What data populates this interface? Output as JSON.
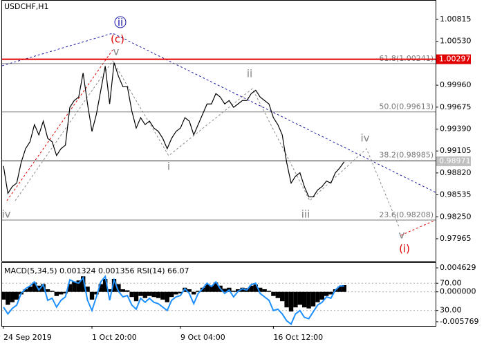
{
  "chart_data": [
    {
      "type": "line",
      "title": "USDCHF,H1",
      "color": "#000000",
      "values": [
        0.98911,
        0.98554,
        0.98643,
        0.98688,
        0.98956,
        0.99135,
        0.99225,
        0.99448,
        0.99314,
        0.99493,
        0.99269,
        0.99225,
        0.99046,
        0.99135,
        0.9918,
        0.99672,
        0.99761,
        0.99806,
        1.00119,
        0.99716,
        0.99359,
        0.99582,
        0.99895,
        1.00208,
        0.99716,
        1.00253,
        1.00074,
        0.9994,
        0.9994,
        0.99627,
        0.99403,
        0.99538,
        0.99448,
        0.99493,
        0.99403,
        0.99359,
        0.99269,
        0.99135,
        0.99269,
        0.99359,
        0.99403,
        0.99538,
        0.99493,
        0.99314,
        0.99448,
        0.99582,
        0.99716,
        0.99716,
        0.99851,
        0.99806,
        0.99716,
        0.99761,
        0.99672,
        0.99716,
        0.99761,
        0.99761,
        0.99851,
        0.99895,
        0.99806,
        0.99761,
        0.99716,
        0.99538,
        0.99448,
        0.99314,
        0.98956,
        0.98688,
        0.98777,
        0.98822,
        0.98643,
        0.98509,
        0.98509,
        0.98598,
        0.98643,
        0.98715,
        0.98688,
        0.98822,
        0.98885,
        0.98965
      ],
      "ylim": [
        0.97677,
        1.01058
      ],
      "yticks": [
        1.00815,
        {
          "value": 1.0053,
          "label": "1.00530"
        },
        {
          "value": 0.9996,
          "label": "0.99960"
        },
        0.99675,
        {
          "value": 0.9939,
          "label": "0.99390"
        },
        0.99105,
        {
          "value": 0.9882,
          "label": "0.98820"
        },
        0.98535,
        {
          "value": 0.9825,
          "label": "0.98250"
        },
        0.97965
      ],
      "fib_levels": [
        {
          "value": 1.00241,
          "label": "61.8(1.00241)"
        },
        {
          "value": 0.99613,
          "label": "50.0(0.99613)"
        },
        {
          "value": 0.98985,
          "label": "38.2(0.98985)"
        },
        {
          "value": 0.98208,
          "label": "23.6(0.98208)"
        }
      ],
      "level": {
        "value": 1.00297,
        "color": "#e00000"
      },
      "current_price": 0.98971,
      "annotations": [
        {
          "text": "ii",
          "color": "#1a1aa6"
        },
        {
          "text": "(c)",
          "color": "#e00000"
        },
        {
          "text": "v",
          "color": "#808080"
        },
        {
          "text": "ii",
          "color": "#808080"
        },
        {
          "text": "iv",
          "color": "#808080"
        },
        {
          "text": "i",
          "color": "#808080"
        },
        {
          "text": "iv",
          "color": "#808080"
        },
        {
          "text": "iii",
          "color": "#808080"
        },
        {
          "text": "v",
          "color": "#808080"
        },
        {
          "text": "(i)",
          "color": "#e00000"
        }
      ]
    },
    {
      "type": "bar",
      "macd_label": "MACD(5,34,5)",
      "macd_value": 0.001324,
      "signal_value": 0.001356,
      "rsi_label": "RSI(14)",
      "rsi_value": 66.07,
      "categories": [
        "24 Sep 2019",
        null,
        null,
        null,
        null,
        null,
        null,
        null,
        null,
        null,
        null,
        null,
        null,
        null,
        null,
        null,
        null,
        null,
        null,
        null,
        "1 Oct 20:00",
        null,
        null,
        null,
        null,
        null,
        null,
        null,
        null,
        null,
        null,
        null,
        null,
        null,
        null,
        null,
        null,
        null,
        null,
        null,
        "9 Oct 04:00",
        null,
        null,
        null,
        null,
        null,
        null,
        null,
        null,
        null,
        null,
        null,
        null,
        null,
        null,
        null,
        null,
        null,
        null,
        null,
        null,
        "16 Oct 12:00",
        null,
        null,
        null,
        null,
        null,
        null,
        null,
        null,
        null,
        null,
        null,
        null,
        null,
        null,
        null,
        null
      ],
      "series": [
        {
          "color": "#000000",
          "values": [
            -0.0015,
            -0.0025,
            -0.002,
            -0.0015,
            -0.0005,
            0.0005,
            0.001,
            0.0018,
            0.0012,
            0.0015,
            0.0005,
            0.0002,
            -0.0008,
            -0.0005,
            -0.0003,
            0.0015,
            0.002,
            0.0022,
            0.003,
            0.001,
            -0.0015,
            -0.0005,
            0.0015,
            0.0025,
            0.0005,
            0.0025,
            0.0015,
            0.0005,
            0.0003,
            -0.001,
            -0.0018,
            -0.0008,
            -0.0012,
            -0.0008,
            -0.001,
            -0.0012,
            -0.0015,
            -0.002,
            -0.001,
            -0.0005,
            -0.0003,
            0.0008,
            0.0005,
            -0.0005,
            0.0002,
            0.0008,
            0.0015,
            0.0012,
            0.0018,
            0.0012,
            0.0006,
            0.0008,
            0.0002,
            0.0005,
            0.0008,
            0.0007,
            0.0012,
            0.0014,
            0.0008,
            0.0005,
            0.0002,
            -0.0008,
            -0.0012,
            -0.0018,
            -0.003,
            -0.0038,
            -0.003,
            -0.0025,
            -0.003,
            -0.0032,
            -0.0028,
            -0.002,
            -0.0015,
            -0.0008,
            -0.0005,
            0.0005,
            0.001,
            0.0013
          ]
        },
        {
          "color": "#1e90ff",
          "axis": "y2",
          "values": [
            35,
            25,
            33,
            38,
            55,
            62,
            66,
            72,
            60,
            68,
            45,
            48,
            35,
            45,
            50,
            75,
            72,
            70,
            78,
            45,
            30,
            50,
            72,
            80,
            45,
            75,
            58,
            50,
            52,
            38,
            32,
            48,
            42,
            48,
            42,
            40,
            35,
            30,
            45,
            50,
            52,
            62,
            55,
            40,
            55,
            62,
            70,
            65,
            72,
            62,
            55,
            60,
            50,
            58,
            62,
            60,
            68,
            70,
            55,
            50,
            45,
            30,
            32,
            25,
            15,
            10,
            25,
            30,
            20,
            18,
            28,
            38,
            42,
            50,
            48,
            60,
            66,
            66
          ]
        }
      ],
      "ylim": [
        -0.006579,
        0.005574
      ],
      "yticks": [
        0.004629,
        {
          "value": 0,
          "label": "0.000000"
        },
        -0.005769
      ],
      "y2lim": [
        7.4,
        99.7
      ],
      "y2ticks": [
        {
          "value": 70,
          "label": "70.00"
        },
        {
          "value": 30,
          "label": "30.00"
        }
      ]
    }
  ]
}
